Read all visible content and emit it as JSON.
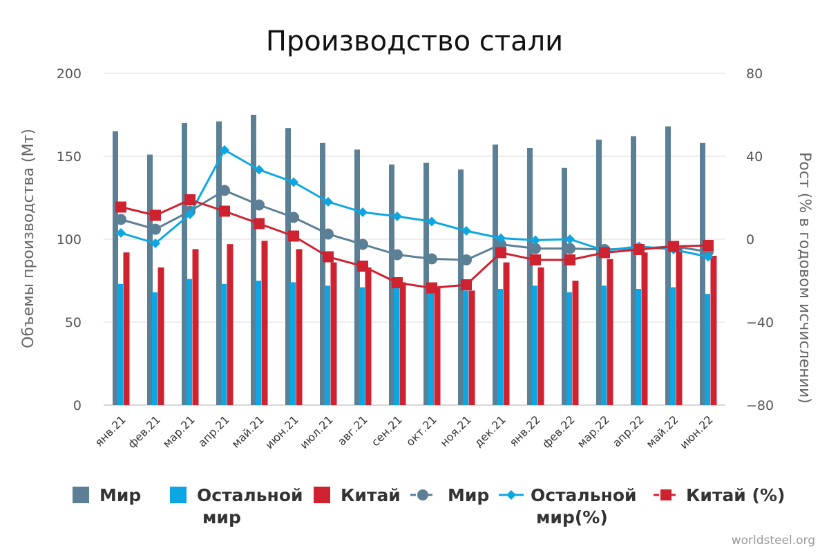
{
  "chart_data": {
    "type": "bar",
    "title": "Производство стали",
    "ylabel": "Объемы производства (Мт)",
    "y2label": "Рост (% в годовом исчислении)",
    "ylim": [
      0,
      200
    ],
    "y2lim": [
      -80,
      80
    ],
    "yticks": [
      "0",
      "50",
      "100",
      "150",
      "200"
    ],
    "y2ticks": [
      "−80",
      "−40",
      "0",
      "40",
      "80"
    ],
    "categories": [
      "янв.21",
      "фев.21",
      "мар.21",
      "апр.21",
      "май.21",
      "июн.21",
      "июл.21",
      "авг.21",
      "сен.21",
      "окт.21",
      "ноя.21",
      "дек.21",
      "янв.22",
      "фев.22",
      "мар.22",
      "апр.22",
      "май.22",
      "июн.22"
    ],
    "series": [
      {
        "name": "Мир",
        "kind": "bar",
        "axis": "left",
        "color": "#5b7f95",
        "values": [
          165,
          151,
          170,
          171,
          175,
          167,
          158,
          154,
          145,
          146,
          142,
          157,
          155,
          143,
          160,
          162,
          168,
          158
        ]
      },
      {
        "name": "Остальной мир",
        "kind": "bar",
        "axis": "left",
        "color": "#0ca7e3",
        "values": [
          73,
          68,
          76,
          73,
          75,
          74,
          72,
          71,
          71,
          70,
          69,
          70,
          72,
          68,
          72,
          70,
          71,
          67
        ]
      },
      {
        "name": "Китай",
        "kind": "bar",
        "axis": "left",
        "color": "#cf2230",
        "values": [
          92,
          83,
          94,
          97,
          99,
          94,
          86,
          83,
          74,
          71,
          69,
          86,
          83,
          75,
          88,
          92,
          96,
          90
        ]
      },
      {
        "name": "Мир",
        "kind": "line",
        "marker": "circle",
        "axis": "right",
        "color": "#5b7f95",
        "values": [
          9.5,
          4.8,
          13.5,
          23.5,
          16.5,
          10.5,
          2.5,
          -2.5,
          -7.5,
          -9.5,
          -10,
          -2.5,
          -4.5,
          -4.5,
          -5,
          -4.5,
          -3.5,
          -6
        ]
      },
      {
        "name": "Остальной мир(%)",
        "kind": "line",
        "marker": "diamond",
        "axis": "right",
        "color": "#0ca7e3",
        "values": [
          3,
          -2,
          12,
          43,
          33.5,
          27.5,
          18,
          13,
          11,
          8.5,
          4,
          0.5,
          -0.5,
          0,
          -5.5,
          -3.5,
          -5,
          -8.5
        ]
      },
      {
        "name": "Китай (%)",
        "kind": "line",
        "marker": "square",
        "axis": "right",
        "color": "#cf2230",
        "values": [
          15.5,
          11.5,
          19,
          13.5,
          7.5,
          1.5,
          -8.5,
          -13,
          -21,
          -23.5,
          -22,
          -6.5,
          -10,
          -10,
          -6.5,
          -5,
          -3.5,
          -3
        ]
      }
    ],
    "legend": {
      "position": "bottom",
      "items": [
        {
          "label_lines": [
            "Мир"
          ],
          "color": "#5b7f95",
          "marker": "box"
        },
        {
          "label_lines": [
            "Остальной",
            "мир"
          ],
          "color": "#0ca7e3",
          "marker": "box"
        },
        {
          "label_lines": [
            "Китай"
          ],
          "color": "#cf2230",
          "marker": "box"
        },
        {
          "label_lines": [
            "Мир"
          ],
          "color": "#5b7f95",
          "marker": "line-circle"
        },
        {
          "label_lines": [
            "Остальной",
            "мир(%)"
          ],
          "color": "#0ca7e3",
          "marker": "line-diamond"
        },
        {
          "label_lines": [
            "Китай (%)"
          ],
          "color": "#cf2230",
          "marker": "line-square"
        }
      ]
    },
    "grid": true,
    "source": "worldsteel.org"
  }
}
